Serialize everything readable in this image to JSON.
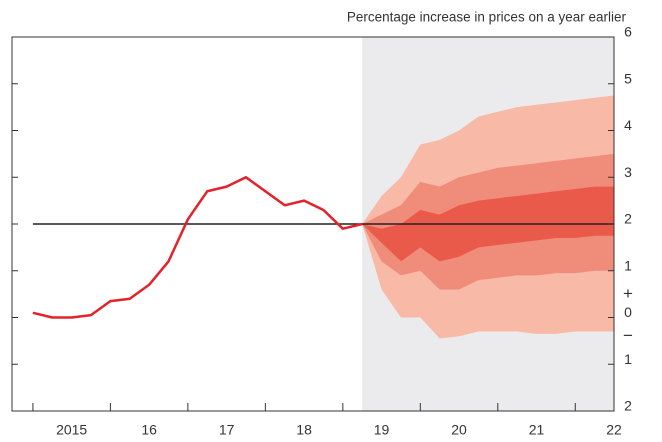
{
  "chart_data": {
    "type": "line",
    "title": "Percentage increase in prices on a year earlier",
    "xlim": [
      2014.73,
      2022.5
    ],
    "ylim": [
      -2,
      6
    ],
    "xticks": [
      {
        "value": 2015,
        "label": "2015"
      },
      {
        "value": 2016,
        "label": "16"
      },
      {
        "value": 2017,
        "label": "17"
      },
      {
        "value": 2018,
        "label": "18"
      },
      {
        "value": 2019,
        "label": "19"
      },
      {
        "value": 2020,
        "label": "20"
      },
      {
        "value": 2021,
        "label": "21"
      },
      {
        "value": 2022,
        "label": "22"
      }
    ],
    "yticks": [
      6,
      5,
      4,
      3,
      2,
      1,
      0,
      {
        "value": -1,
        "label": "1"
      },
      {
        "value": -2,
        "label": "2"
      }
    ],
    "sign_labels": [
      "+",
      "−"
    ],
    "reference_line": 2,
    "shaded_from": 2019.25,
    "x": [
      2015,
      2015.25,
      2015.5,
      2015.75,
      2016,
      2016.25,
      2016.5,
      2016.75,
      2017,
      2017.25,
      2017.5,
      2017.75,
      2018,
      2018.25,
      2018.5,
      2018.75,
      2019,
      2019.25
    ],
    "series": [
      {
        "color": "#e32229",
        "values": [
          0.1,
          0,
          0,
          0.05,
          0.35,
          0.4,
          0.7,
          1.2,
          2.1,
          2.7,
          2.8,
          3.0,
          2.7,
          2.4,
          2.5,
          2.3,
          1.9,
          2.0
        ]
      }
    ],
    "fan": {
      "x": [
        2019.25,
        2019.5,
        2019.75,
        2020,
        2020.25,
        2020.5,
        2020.75,
        2021,
        2021.25,
        2021.5,
        2021.75,
        2022,
        2022.25,
        2022.5
      ],
      "bands": [
        {
          "color": "#f8b9a6",
          "upper": [
            2.0,
            2.6,
            3.0,
            3.7,
            3.8,
            4.0,
            4.3,
            4.4,
            4.5,
            4.55,
            4.6,
            4.65,
            4.7,
            4.75
          ],
          "lower": [
            2.0,
            0.6,
            0.0,
            0.0,
            -0.45,
            -0.4,
            -0.3,
            -0.3,
            -0.3,
            -0.35,
            -0.35,
            -0.3,
            -0.3,
            -0.3
          ]
        },
        {
          "color": "#f08c7a",
          "upper": [
            2.0,
            2.2,
            2.4,
            2.9,
            2.8,
            3.0,
            3.1,
            3.2,
            3.25,
            3.3,
            3.35,
            3.4,
            3.45,
            3.5
          ],
          "lower": [
            2.0,
            1.2,
            0.9,
            1.0,
            0.6,
            0.6,
            0.8,
            0.85,
            0.9,
            0.9,
            0.95,
            0.95,
            1.0,
            1.0
          ]
        },
        {
          "color": "#ea5a4b",
          "upper": [
            2.0,
            1.9,
            2.0,
            2.3,
            2.2,
            2.4,
            2.5,
            2.55,
            2.6,
            2.65,
            2.7,
            2.75,
            2.8,
            2.8
          ],
          "lower": [
            2.0,
            1.6,
            1.2,
            1.5,
            1.2,
            1.3,
            1.5,
            1.55,
            1.6,
            1.65,
            1.7,
            1.7,
            1.75,
            1.75
          ]
        }
      ]
    }
  }
}
